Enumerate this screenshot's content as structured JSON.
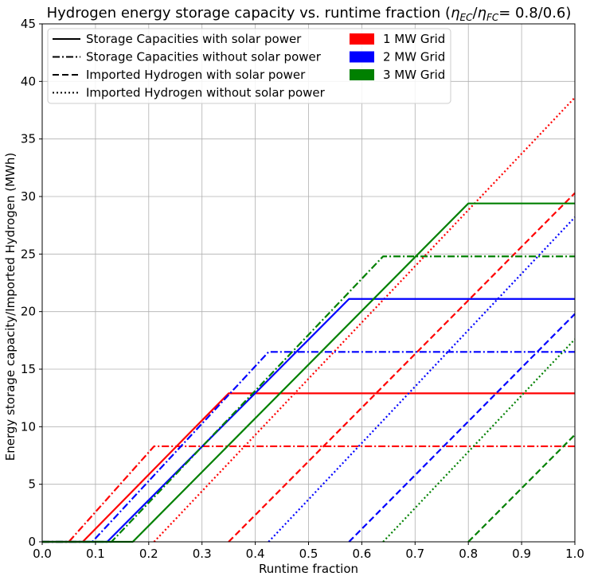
{
  "chart_data": {
    "type": "line",
    "title": "Hydrogen energy storage capacity vs. runtime fraction (ηEC/ηFC = 0.8/0.6)",
    "title_main": "Hydrogen energy storage capacity vs. runtime fraction (",
    "title_eta": "η",
    "title_ec": "EC",
    "title_slash": "/",
    "title_fc": "FC",
    "title_eq": "= 0.8/0.6)",
    "xlabel": "Runtime fraction",
    "ylabel": "Energy storage capacity/Imported Hydrogen (MWh)",
    "xlim": [
      0,
      1
    ],
    "ylim": [
      0,
      45
    ],
    "x_ticks": [
      "0.0",
      "0.1",
      "0.2",
      "0.3",
      "0.4",
      "0.5",
      "0.6",
      "0.7",
      "0.8",
      "0.9",
      "1.0"
    ],
    "y_ticks": [
      "0",
      "5",
      "10",
      "15",
      "20",
      "25",
      "30",
      "35",
      "40",
      "45"
    ],
    "grid": true,
    "legend_placement": "top-left",
    "legend_styles": [
      {
        "label": "Storage Capacities with solar power",
        "style": "solid"
      },
      {
        "label": "Storage Capacities without solar power",
        "style": "dashdot"
      },
      {
        "label": "Imported Hydrogen with solar power",
        "style": "dashed"
      },
      {
        "label": "Imported Hydrogen without solar power",
        "style": "dotted"
      }
    ],
    "legend_colors": [
      {
        "label": "1 MW Grid",
        "color": "#ff0000"
      },
      {
        "label": "2 MW Grid",
        "color": "#0000ff"
      },
      {
        "label": "3 MW Grid",
        "color": "#008000"
      }
    ],
    "series": [
      {
        "grid": "1 MW Grid",
        "style": "solid",
        "color": "#ff0000",
        "x": [
          0,
          0.076,
          0.35,
          1.0
        ],
        "y": [
          0,
          0,
          12.9,
          12.9
        ]
      },
      {
        "grid": "1 MW Grid",
        "style": "dashdot",
        "color": "#ff0000",
        "x": [
          0,
          0.05,
          0.21,
          1.0
        ],
        "y": [
          0,
          0,
          8.3,
          8.3
        ]
      },
      {
        "grid": "1 MW Grid",
        "style": "dashed",
        "color": "#ff0000",
        "x": [
          0.35,
          1.0
        ],
        "y": [
          0,
          30.3
        ]
      },
      {
        "grid": "1 MW Grid",
        "style": "dotted",
        "color": "#ff0000",
        "x": [
          0.21,
          1.0
        ],
        "y": [
          0,
          38.6
        ]
      },
      {
        "grid": "2 MW Grid",
        "style": "solid",
        "color": "#0000ff",
        "x": [
          0,
          0.122,
          0.576,
          1.0
        ],
        "y": [
          0,
          0,
          21.1,
          21.1
        ]
      },
      {
        "grid": "2 MW Grid",
        "style": "dashdot",
        "color": "#0000ff",
        "x": [
          0,
          0.094,
          0.425,
          1.0
        ],
        "y": [
          0,
          0,
          16.5,
          16.5
        ]
      },
      {
        "grid": "2 MW Grid",
        "style": "dashed",
        "color": "#0000ff",
        "x": [
          0.576,
          1.0
        ],
        "y": [
          0,
          19.8
        ]
      },
      {
        "grid": "2 MW Grid",
        "style": "dotted",
        "color": "#0000ff",
        "x": [
          0.425,
          1.0
        ],
        "y": [
          0,
          28.2
        ]
      },
      {
        "grid": "3 MW Grid",
        "style": "solid",
        "color": "#008000",
        "x": [
          0,
          0.17,
          0.8,
          1.0
        ],
        "y": [
          0,
          0,
          29.4,
          29.4
        ]
      },
      {
        "grid": "3 MW Grid",
        "style": "dashdot",
        "color": "#008000",
        "x": [
          0,
          0.13,
          0.64,
          1.0
        ],
        "y": [
          0,
          0,
          24.8,
          24.8
        ]
      },
      {
        "grid": "3 MW Grid",
        "style": "dashed",
        "color": "#008000",
        "x": [
          0.8,
          1.0
        ],
        "y": [
          0,
          9.3
        ]
      },
      {
        "grid": "3 MW Grid",
        "style": "dotted",
        "color": "#008000",
        "x": [
          0.64,
          1.0
        ],
        "y": [
          0,
          17.6
        ]
      }
    ]
  }
}
